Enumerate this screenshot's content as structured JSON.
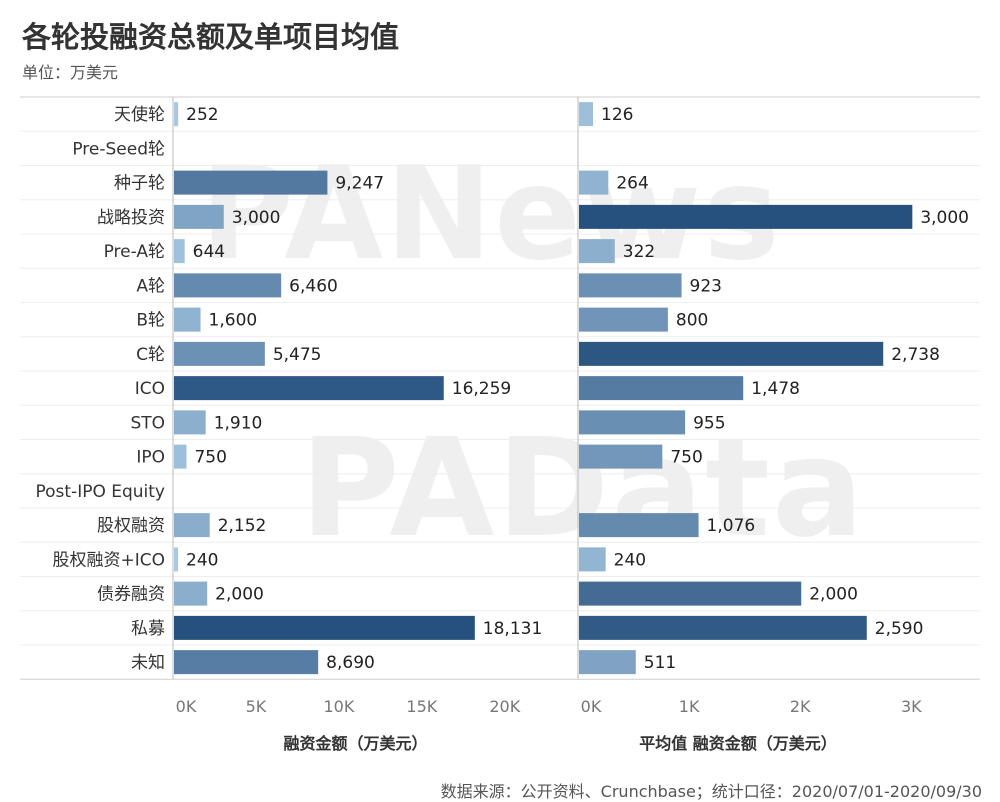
{
  "page": {
    "title": "各轮投融资总额及单项目均值",
    "subtitle": "单位：万美元",
    "source": "数据来源：公开资料、Crunchbase；统计口径：2020/07/01-2020/09/30",
    "watermarks": [
      "PANews",
      "PAData"
    ]
  },
  "chart_data": [
    {
      "type": "bar",
      "orientation": "horizontal",
      "categories": [
        "天使轮",
        "Pre-Seed轮",
        "种子轮",
        "战略投资",
        "Pre-A轮",
        "A轮",
        "B轮",
        "C轮",
        "ICO",
        "STO",
        "IPO",
        "Post-IPO Equity",
        "股权融资",
        "股权融资+ICO",
        "债券融资",
        "私募",
        "未知"
      ],
      "values": [
        252,
        null,
        9247,
        3000,
        644,
        6460,
        1600,
        5475,
        16259,
        1910,
        750,
        null,
        2152,
        240,
        2000,
        18131,
        8690
      ],
      "value_labels": [
        "252",
        "",
        "9,247",
        "3,000",
        "644",
        "6,460",
        "1,600",
        "5,475",
        "16,259",
        "1,910",
        "750",
        "",
        "2,152",
        "240",
        "2,000",
        "18,131",
        "8,690"
      ],
      "xlabel": "融资金额（万美元）",
      "xlim": [
        0,
        22000
      ],
      "xticks": [
        0,
        5000,
        10000,
        15000,
        20000
      ],
      "xtick_labels": [
        "0K",
        "5K",
        "10K",
        "15K",
        "20K"
      ],
      "grid": "horizontal separators"
    },
    {
      "type": "bar",
      "orientation": "horizontal",
      "categories": [
        "天使轮",
        "Pre-Seed轮",
        "种子轮",
        "战略投资",
        "Pre-A轮",
        "A轮",
        "B轮",
        "C轮",
        "ICO",
        "STO",
        "IPO",
        "Post-IPO Equity",
        "股权融资",
        "股权融资+ICO",
        "债券融资",
        "私募",
        "未知"
      ],
      "values": [
        126,
        null,
        264,
        3000,
        322,
        923,
        800,
        2738,
        1478,
        955,
        750,
        null,
        1076,
        240,
        2000,
        2590,
        511
      ],
      "value_labels": [
        "126",
        "",
        "264",
        "3,000",
        "322",
        "923",
        "800",
        "2,738",
        "1,478",
        "955",
        "750",
        "",
        "1,076",
        "240",
        "2,000",
        "2,590",
        "511"
      ],
      "xlabel": "平均值 融资金额（万美元）",
      "xlim": [
        0,
        3600
      ],
      "xticks": [
        0,
        1000,
        2000,
        3000
      ],
      "xtick_labels": [
        "0K",
        "1K",
        "2K",
        "3K"
      ],
      "grid": "horizontal separators"
    }
  ],
  "colors": {
    "scale_light": "#b6d6ee",
    "scale_dark": "#26507e"
  }
}
